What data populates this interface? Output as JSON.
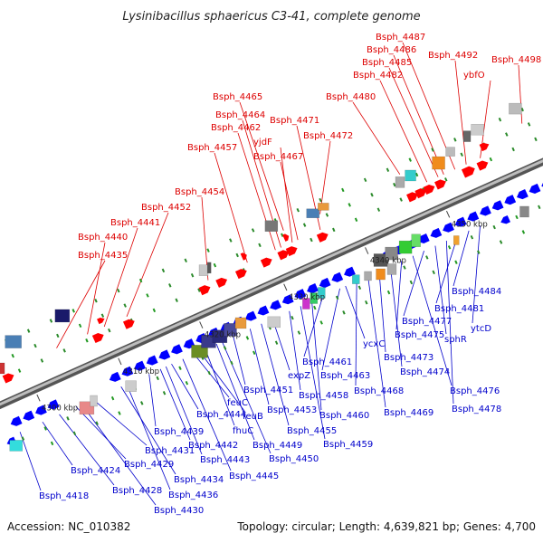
{
  "title": "Lysinibacillus sphaericus C3-41, complete genome",
  "footer": {
    "accession": "Accession: NC_010382",
    "summary": "Topology: circular; Length: 4,639,821 bp; Genes: 4,700"
  },
  "colors": {
    "forward_label": "#dd0000",
    "reverse_label": "#0000cc",
    "forward_gene": "#ff0000",
    "reverse_gene": "#0000ff",
    "backbone": "#8a8a8a"
  },
  "scale_ticks": [
    "4300 kbp",
    "4310 kbp",
    "4320 kbp",
    "4330 kbp",
    "4340 kbp",
    "4350 kbp"
  ],
  "forward_genes": [
    "Bsph_4435",
    "Bsph_4440",
    "Bsph_4441",
    "Bsph_4452",
    "Bsph_4454",
    "Bsph_4457",
    "Bsph_4462",
    "Bsph_4464",
    "Bsph_4465",
    "yjdF",
    "Bsph_4467",
    "Bsph_4471",
    "Bsph_4472",
    "Bsph_4480",
    "Bsph_4482",
    "Bsph_4485",
    "Bsph_4486",
    "Bsph_4487",
    "Bsph_4492",
    "ybfO",
    "Bsph_4498"
  ],
  "reverse_genes": [
    "Bsph_4418",
    "Bsph_4424",
    "Bsph_4428",
    "Bsph_4429",
    "Bsph_4430",
    "Bsph_4431",
    "Bsph_4434",
    "Bsph_4436",
    "Bsph_4439",
    "Bsph_4442",
    "Bsph_4443",
    "Bsph_4444",
    "Bsph_4445",
    "feuC",
    "feuB",
    "fhuC",
    "Bsph_4449",
    "Bsph_4450",
    "Bsph_4451",
    "Bsph_4453",
    "Bsph_4455",
    "expZ",
    "Bsph_4458",
    "Bsph_4459",
    "Bsph_4460",
    "Bsph_4461",
    "Bsph_4463",
    "ycxC",
    "Bsph_4468",
    "Bsph_4469",
    "Bsph_4473",
    "Bsph_4474",
    "Bsph_4475",
    "Bsph_4476",
    "Bsph_4477",
    "sphR",
    "Bsph_4478",
    "Bsph_4481",
    "Bsph_4484",
    "ytcD"
  ]
}
